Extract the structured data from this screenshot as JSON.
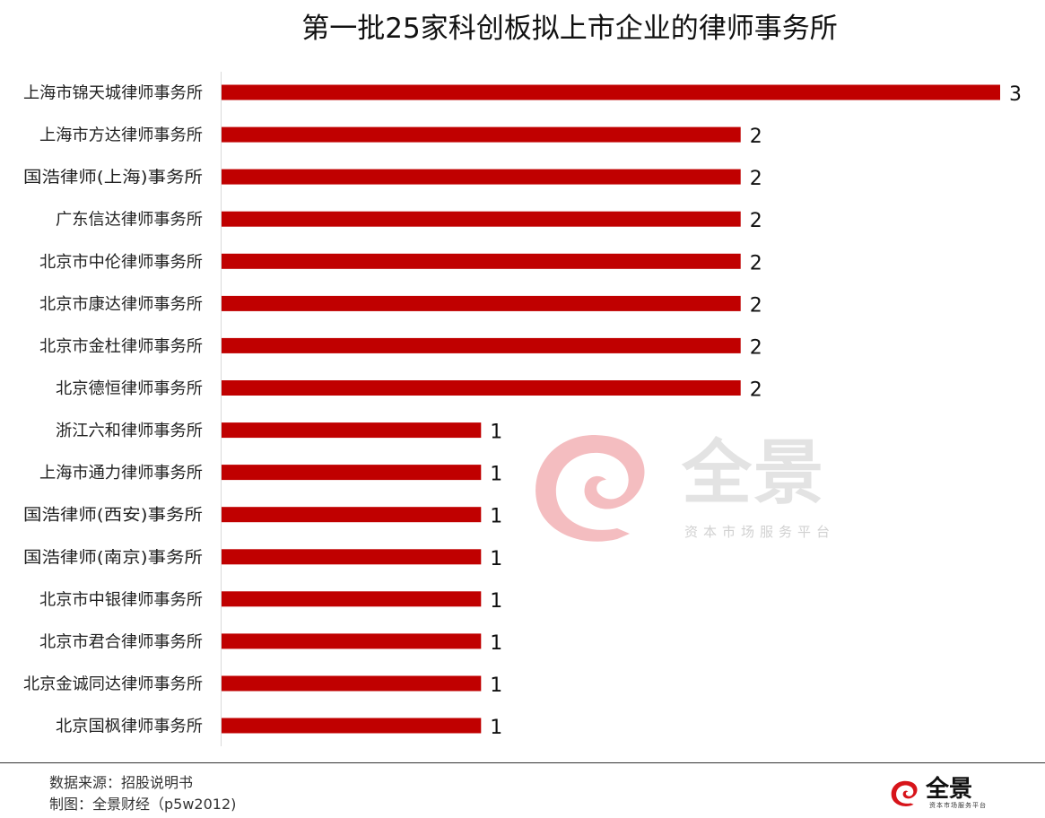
{
  "chart_data": {
    "type": "bar",
    "orientation": "horizontal",
    "title": "第一批25家科创板拟上市企业的律师事务所",
    "categories": [
      "上海市锦天城律师事务所",
      "上海市方达律师事务所",
      "国浩律师(上海)事务所",
      "广东信达律师事务所",
      "北京市中伦律师事务所",
      "北京市康达律师事务所",
      "北京市金杜律师事务所",
      "北京德恒律师事务所",
      "浙江六和律师事务所",
      "上海市通力律师事务所",
      "国浩律师(西安)事务所",
      "国浩律师(南京)事务所",
      "北京市中银律师事务所",
      "北京市君合律师事务所",
      "北京金诚同达律师事务所",
      "北京国枫律师事务所"
    ],
    "values": [
      3,
      2,
      2,
      2,
      2,
      2,
      2,
      2,
      1,
      1,
      1,
      1,
      1,
      1,
      1,
      1
    ],
    "xlim": [
      0,
      3
    ],
    "xlabel": "",
    "ylabel": "",
    "bar_color": "#c00000",
    "grid": false,
    "legend": "none",
    "data_labels": true
  },
  "footer": {
    "source": "数据来源：招股说明书",
    "credit": "制图：全景财经（p5w2012)"
  },
  "watermark": {
    "brand": "全景",
    "tagline": "资本市场服务平台",
    "color": "#f3b6b9"
  },
  "footer_logo": {
    "brand": "全景",
    "tagline": "资本市场服务平台",
    "color": "#d7141a"
  }
}
